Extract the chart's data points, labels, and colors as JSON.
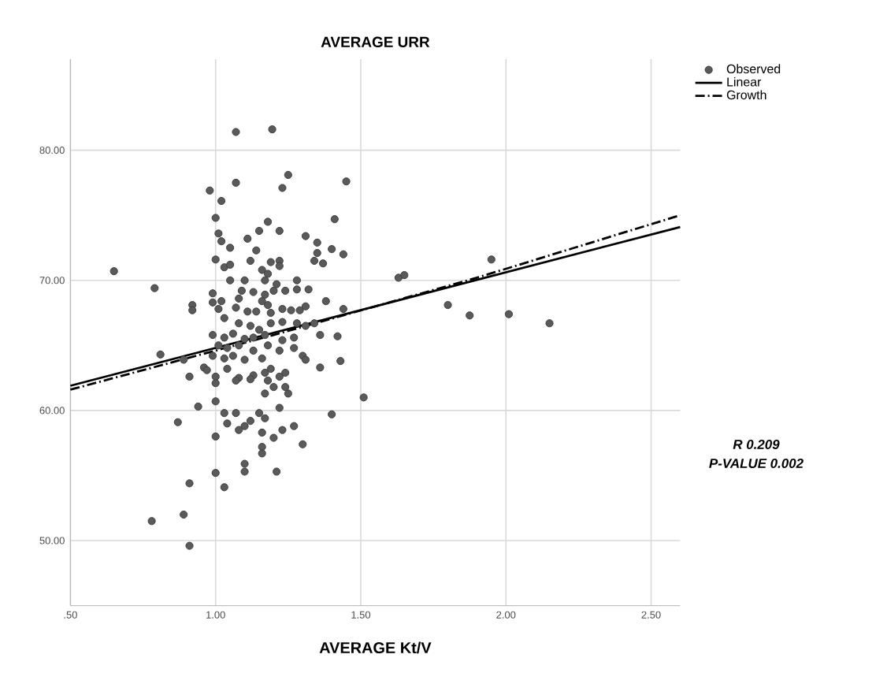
{
  "chart_data": {
    "type": "scatter",
    "title": "AVERAGE URR",
    "xlabel": "AVERAGE Kt/V",
    "xlim": [
      0.5,
      2.6
    ],
    "ylim": [
      45,
      87
    ],
    "xticks": [
      {
        "value": 0.5,
        "label": ".50"
      },
      {
        "value": 1.0,
        "label": "1.00"
      },
      {
        "value": 1.5,
        "label": "1.50"
      },
      {
        "value": 2.0,
        "label": "2.00"
      },
      {
        "value": 2.5,
        "label": "2.50"
      }
    ],
    "yticks": [
      {
        "value": 50,
        "label": "50.00"
      },
      {
        "value": 60,
        "label": "60.00"
      },
      {
        "value": 70,
        "label": "70.00"
      },
      {
        "value": 80,
        "label": "80.00"
      }
    ],
    "grid": true,
    "legend": "top right",
    "marker": "circle",
    "annotations": [
      "R 0.209",
      "P-VALUE 0.002"
    ],
    "series": [
      {
        "name": "Observed",
        "color": "#5a5a5a",
        "x": [
          0.98,
          1.07,
          1.02,
          1.25,
          1.23,
          1.45,
          1.0,
          1.18,
          1.15,
          1.11,
          1.22,
          1.01,
          1.02,
          1.41,
          1.31,
          1.35,
          1.14,
          1.05,
          1.35,
          1.4,
          1.44,
          1.0,
          1.03,
          1.05,
          1.12,
          1.19,
          1.22,
          1.22,
          1.34,
          1.37,
          1.16,
          1.18,
          1.17,
          1.05,
          1.1,
          1.21,
          1.28,
          0.79,
          1.09,
          1.13,
          1.17,
          1.2,
          1.24,
          1.28,
          1.32,
          0.99,
          0.99,
          1.02,
          1.08,
          1.16,
          0.92,
          0.92,
          1.01,
          1.07,
          1.11,
          1.14,
          1.18,
          1.19,
          1.23,
          1.26,
          1.31,
          1.29,
          1.38,
          1.44,
          1.03,
          1.08,
          1.12,
          1.19,
          1.23,
          1.28,
          1.31,
          1.15,
          0.99,
          1.03,
          1.06,
          1.1,
          1.13,
          1.17,
          1.23,
          1.27,
          1.34,
          1.36,
          1.42,
          1.01,
          1.04,
          1.08,
          1.13,
          1.18,
          1.22,
          1.27,
          0.81,
          0.89,
          0.99,
          1.03,
          1.06,
          1.1,
          1.16,
          1.3,
          1.31,
          1.43,
          0.96,
          0.97,
          1.04,
          1.36,
          0.91,
          1.0,
          1.08,
          1.13,
          1.17,
          1.19,
          1.22,
          1.24,
          1.0,
          1.07,
          1.12,
          1.18,
          1.2,
          1.24,
          1.17,
          1.0,
          0.94,
          1.25,
          1.51,
          1.03,
          1.07,
          1.15,
          1.17,
          1.22,
          1.04,
          1.08,
          1.1,
          1.12,
          1.16,
          1.2,
          1.23,
          1.27,
          1.4,
          0.87,
          1.0,
          1.3,
          1.16,
          1.16,
          1.1,
          1.1,
          1.21,
          1.0,
          1.03,
          0.91,
          0.89,
          0.78,
          0.91,
          0.65,
          1.63,
          1.65,
          1.8,
          1.875,
          2.01,
          2.15,
          1.07,
          1.195,
          1.95
        ],
        "values": [
          76.9,
          77.5,
          76.1,
          78.1,
          77.1,
          77.6,
          74.8,
          74.5,
          73.8,
          73.2,
          73.8,
          73.6,
          73.0,
          74.7,
          73.4,
          72.9,
          72.3,
          72.5,
          72.1,
          72.4,
          72.0,
          71.6,
          71.0,
          71.2,
          71.5,
          71.4,
          71.5,
          71.1,
          71.5,
          71.3,
          70.8,
          70.5,
          70.0,
          70.0,
          70.0,
          69.7,
          70.0,
          69.4,
          69.2,
          69.1,
          68.9,
          69.2,
          69.2,
          69.3,
          69.3,
          69.0,
          68.3,
          68.4,
          68.6,
          68.4,
          68.1,
          67.7,
          67.8,
          67.9,
          67.6,
          67.6,
          68.1,
          67.5,
          67.8,
          67.7,
          68.0,
          67.7,
          68.4,
          67.8,
          67.1,
          66.7,
          66.5,
          66.7,
          66.8,
          66.7,
          66.5,
          66.2,
          65.8,
          65.6,
          65.9,
          65.5,
          65.6,
          65.8,
          65.4,
          65.6,
          66.7,
          65.8,
          65.7,
          65.0,
          64.8,
          65.0,
          64.6,
          65.0,
          64.6,
          64.8,
          64.3,
          63.9,
          64.2,
          64.0,
          64.2,
          63.9,
          64.0,
          64.2,
          63.9,
          63.8,
          63.3,
          63.1,
          63.2,
          63.3,
          62.6,
          62.6,
          62.5,
          62.7,
          62.9,
          63.2,
          62.6,
          62.9,
          62.1,
          62.3,
          62.4,
          62.3,
          61.8,
          61.8,
          61.3,
          60.7,
          60.3,
          61.3,
          61.0,
          59.8,
          59.8,
          59.8,
          59.4,
          60.2,
          59.0,
          58.5,
          58.8,
          59.2,
          58.3,
          57.9,
          58.5,
          58.8,
          59.7,
          59.1,
          58.0,
          57.4,
          57.2,
          56.7,
          55.9,
          55.3,
          55.3,
          55.2,
          54.1,
          54.4,
          52.0,
          51.5,
          49.6,
          70.7,
          70.2,
          70.4,
          68.1,
          67.3,
          67.4,
          66.7,
          81.4,
          81.6,
          71.6
        ]
      },
      {
        "name": "Linear",
        "type": "line",
        "color": "#000000",
        "marker": "none",
        "line_style": "solid",
        "x": [
          0.5,
          2.6
        ],
        "values": [
          61.9,
          74.1
        ]
      },
      {
        "name": "Growth",
        "type": "line",
        "color": "#000000",
        "marker": "none",
        "line_style": "dashed",
        "x": [
          0.5,
          1.2,
          1.9,
          2.6
        ],
        "values": [
          61.6,
          65.8,
          70.2,
          75.0
        ]
      }
    ]
  }
}
